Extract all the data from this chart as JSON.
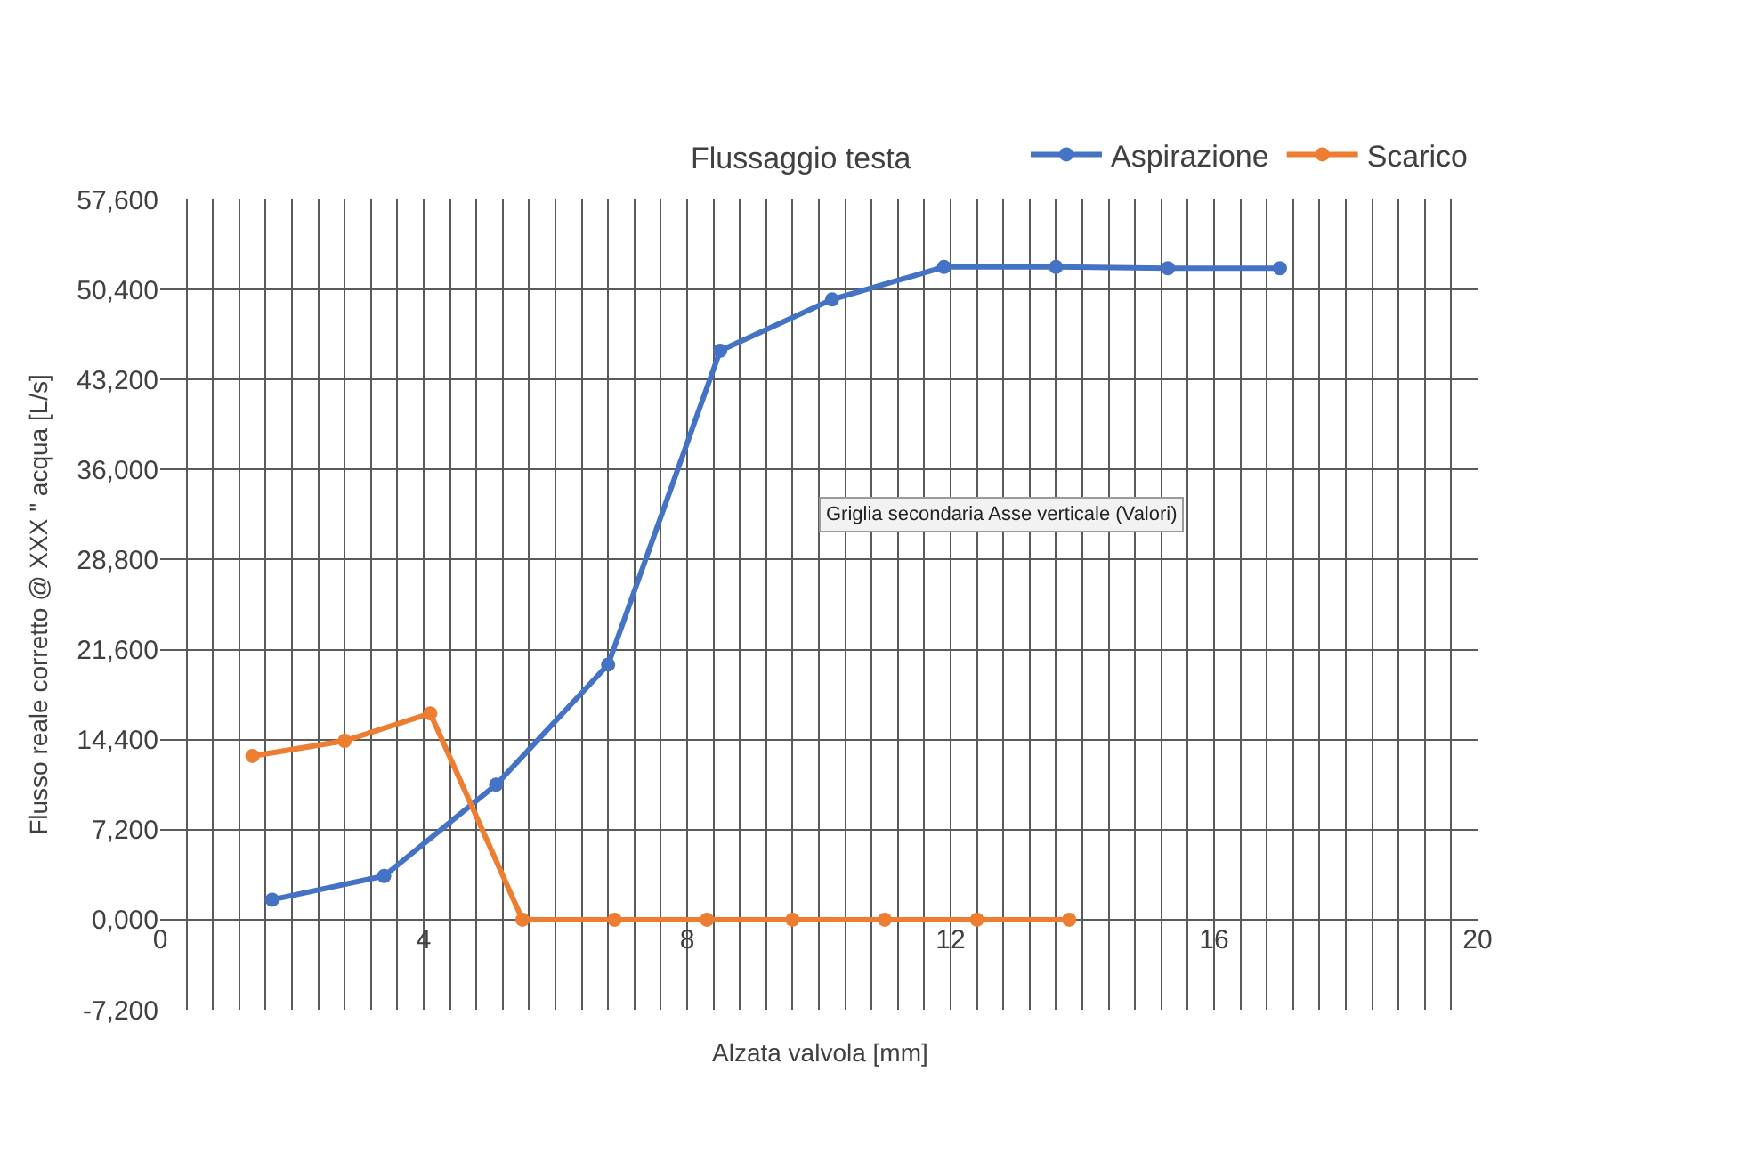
{
  "chart_data": {
    "type": "line",
    "title": "Flussaggio testa",
    "xlabel": "Alzata valvola [mm]",
    "ylabel": "Flusso reale corretto @ XXX \" acqua [L/s]",
    "annotations": [
      "Griglia secondaria Asse verticale (Valori)"
    ],
    "series": [
      {
        "name": "Aspirazione",
        "color": "#4472c4",
        "x": [
          1.7,
          3.4,
          5.1,
          6.8,
          8.5,
          10.2,
          11.9,
          13.6,
          15.3,
          17.0
        ],
        "values": [
          1600,
          3500,
          10800,
          20400,
          45500,
          49600,
          52200,
          52200,
          52100,
          52100
        ]
      },
      {
        "name": "Scarico",
        "color": "#ed7d31",
        "x": [
          1.4,
          2.8,
          4.1,
          5.5,
          6.9,
          8.3,
          9.6,
          11.0,
          12.4,
          13.8
        ],
        "values": [
          13100,
          14300,
          16500,
          0,
          0,
          0,
          0,
          0,
          0,
          0
        ]
      }
    ],
    "xlim": [
      0,
      20
    ],
    "xticks": [
      0,
      4,
      8,
      12,
      16,
      20
    ],
    "ylim": [
      -7200,
      57600
    ],
    "yticks": [
      {
        "value": -7200,
        "label": "-7,200"
      },
      {
        "value": 0,
        "label": "0,000"
      },
      {
        "value": 7200,
        "label": "7,200"
      },
      {
        "value": 14400,
        "label": "14,400"
      },
      {
        "value": 21600,
        "label": "21,600"
      },
      {
        "value": 28800,
        "label": "28,800"
      },
      {
        "value": 36000,
        "label": "36,000"
      },
      {
        "value": 43200,
        "label": "43,200"
      },
      {
        "value": 50400,
        "label": "50,400"
      },
      {
        "value": 57600,
        "label": "57,600"
      }
    ],
    "grid": true,
    "legend": "top right",
    "marker": "circle",
    "line_style": "solid"
  }
}
